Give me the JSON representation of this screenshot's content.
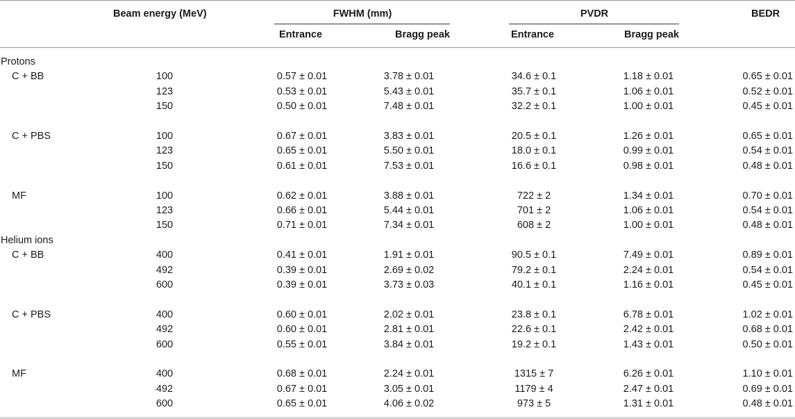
{
  "headers": {
    "beam_energy": "Beam energy (MeV)",
    "fwhm": "FWHM (mm)",
    "pvdr": "PVDR",
    "bedr": "BEDR",
    "fwhm_entrance": "Entrance",
    "fwhm_bragg": "Bragg peak",
    "pvdr_entrance": "Entrance",
    "pvdr_bragg": "Bragg peak"
  },
  "sections": [
    {
      "label": "Protons",
      "groups": [
        {
          "label": "C + BB",
          "rows": [
            [
              "100",
              "0.57 ± 0.01",
              "3.78 ± 0.01",
              "34.6 ± 0.1",
              "1.18 ± 0.01",
              "0.65 ± 0.01"
            ],
            [
              "123",
              "0.53 ± 0.01",
              "5.43 ± 0.01",
              "35.7 ± 0.1",
              "1.06 ± 0.01",
              "0.52 ± 0.01"
            ],
            [
              "150",
              "0.50 ± 0.01",
              "7.48 ± 0.01",
              "32.2 ± 0.1",
              "1.00 ± 0.01",
              "0.45 ± 0.01"
            ]
          ]
        },
        {
          "label": "C + PBS",
          "rows": [
            [
              "100",
              "0.67 ± 0.01",
              "3.83 ± 0.01",
              "20.5 ± 0.1",
              "1.26 ± 0.01",
              "0.65 ± 0.01"
            ],
            [
              "123",
              "0.65 ± 0.01",
              "5.50 ± 0.01",
              "18.0 ± 0.1",
              "0.99 ± 0.01",
              "0.54 ± 0.01"
            ],
            [
              "150",
              "0.61 ± 0.01",
              "7.53 ± 0.01",
              "16.6 ± 0.1",
              "0.98 ± 0.01",
              "0.48 ± 0.01"
            ]
          ]
        },
        {
          "label": "MF",
          "rows": [
            [
              "100",
              "0.62 ± 0.01",
              "3.88 ± 0.01",
              "722 ± 2",
              "1.34 ± 0.01",
              "0.70 ± 0.01"
            ],
            [
              "123",
              "0.66 ± 0.01",
              "5.44 ± 0.01",
              "701 ± 2",
              "1.06 ± 0.01",
              "0.54 ± 0.01"
            ],
            [
              "150",
              "0.71 ± 0.01",
              "7.34 ± 0.01",
              "608 ± 2",
              "1.00 ± 0.01",
              "0.48 ± 0.01"
            ]
          ]
        }
      ]
    },
    {
      "label": "Helium ions",
      "groups": [
        {
          "label": "C + BB",
          "rows": [
            [
              "400",
              "0.41 ± 0.01",
              "1.91 ± 0.01",
              "90.5 ± 0.1",
              "7.49 ± 0.01",
              "0.89 ± 0.01"
            ],
            [
              "492",
              "0.39 ± 0.01",
              "2.69 ± 0.02",
              "79.2 ± 0.1",
              "2.24 ± 0.01",
              "0.54 ± 0.01"
            ],
            [
              "600",
              "0.39 ± 0.01",
              "3.73 ± 0.03",
              "40.1 ± 0.1",
              "1.16 ± 0.01",
              "0.45 ± 0.01"
            ]
          ]
        },
        {
          "label": "C + PBS",
          "rows": [
            [
              "400",
              "0.60 ± 0.01",
              "2.02 ± 0.01",
              "23.8 ± 0.1",
              "6.78 ± 0.01",
              "1.02 ± 0.01"
            ],
            [
              "492",
              "0.60 ± 0.01",
              "2.81 ± 0.01",
              "22.6 ± 0.1",
              "2.42 ± 0.01",
              "0.68 ± 0.01"
            ],
            [
              "600",
              "0.55 ± 0.01",
              "3.84 ± 0.01",
              "19.2 ± 0.1",
              "1.43 ± 0.01",
              "0.50 ± 0.01"
            ]
          ]
        },
        {
          "label": "MF",
          "rows": [
            [
              "400",
              "0.68 ± 0.01",
              "2.24 ± 0.01",
              "1315 ± 7",
              "6.26 ± 0.01",
              "1.10 ± 0.01"
            ],
            [
              "492",
              "0.67 ± 0.01",
              "3.05 ± 0.01",
              "1179 ± 4",
              "2.47 ± 0.01",
              "0.69 ± 0.01"
            ],
            [
              "600",
              "0.65 ± 0.01",
              "4.06 ± 0.02",
              "973 ± 5",
              "1.31 ± 0.01",
              "0.48 ± 0.01"
            ]
          ]
        }
      ]
    }
  ]
}
